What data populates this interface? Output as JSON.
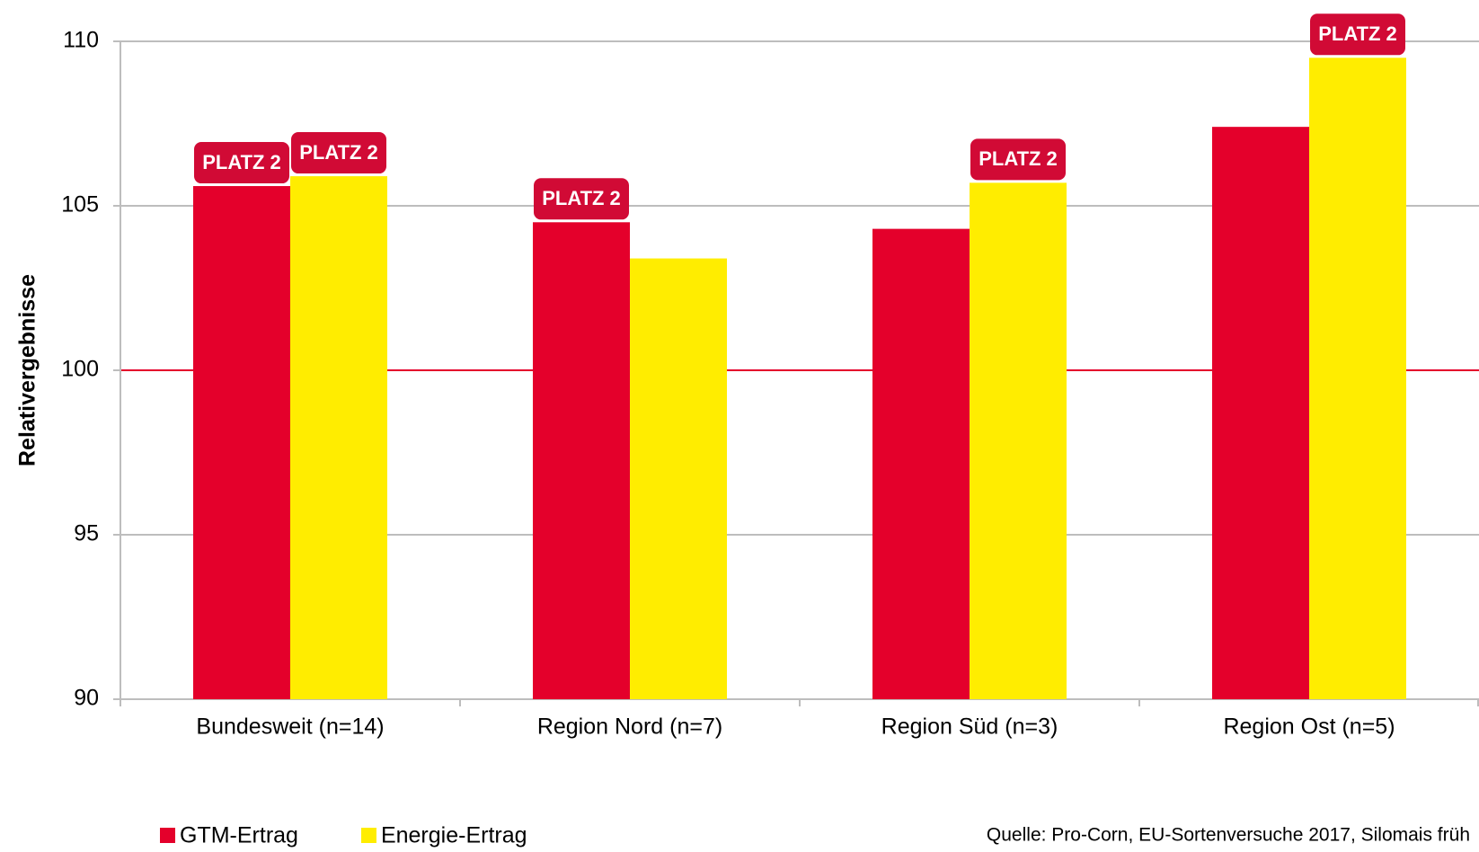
{
  "chart_data": {
    "type": "bar",
    "y_label": "Relativergebnisse",
    "categories": [
      "Bundesweit (n=14)",
      "Region Nord (n=7)",
      "Region Süd (n=3)",
      "Region Ost (n=5)"
    ],
    "series": [
      {
        "name": "GTM-Ertrag",
        "color": "#e4002b",
        "values": [
          105.6,
          104.5,
          104.3,
          107.4
        ],
        "badges": [
          "PLATZ 2",
          "PLATZ 2",
          null,
          null
        ]
      },
      {
        "name": "Energie-Ertrag",
        "color": "#ffed00",
        "values": [
          105.9,
          103.4,
          105.7,
          109.5
        ],
        "badges": [
          "PLATZ 2",
          null,
          "PLATZ 2",
          "PLATZ 2"
        ]
      }
    ],
    "ylim": [
      90,
      110
    ],
    "yticks": [
      90,
      95,
      100,
      105,
      110
    ],
    "grid": true,
    "reference_line": 100,
    "reference_color": "#e4002b",
    "legend": "bottom-left",
    "source": "Quelle: Pro-Corn, EU-Sortenversuche 2017, Silomais früh"
  }
}
